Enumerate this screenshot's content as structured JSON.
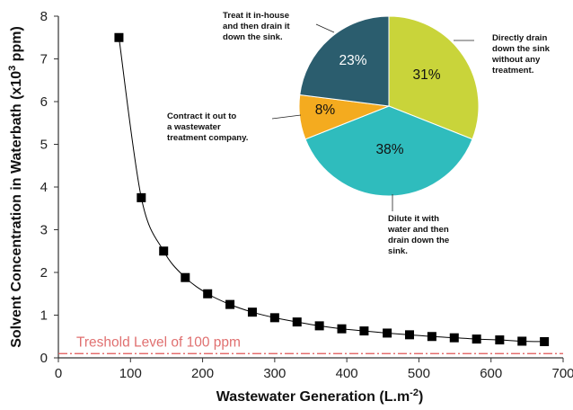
{
  "chart_data": [
    {
      "type": "scatter",
      "title": "",
      "xlabel": "Wastewater Generation (L.m",
      "xlabel_sup": "-2",
      "xlabel_end": ")",
      "ylabel": "Solvent Concentration in Waterbath (x10",
      "ylabel_sup": "3",
      "ylabel_end": " ppm)",
      "xlim": [
        0,
        700
      ],
      "ylim": [
        0,
        8
      ],
      "x_ticks": [
        "0",
        "100",
        "200",
        "300",
        "400",
        "500",
        "600",
        "700"
      ],
      "y_ticks": [
        "0",
        "1",
        "2",
        "3",
        "4",
        "5",
        "6",
        "7",
        "8"
      ],
      "grid": false,
      "marker_color": "#000000",
      "line_color": "#000000",
      "x": [
        84,
        115,
        146,
        176,
        207,
        238,
        269,
        300,
        331,
        362,
        393,
        424,
        456,
        487,
        518,
        549,
        580,
        612,
        643,
        674
      ],
      "y": [
        7.5,
        3.75,
        2.5,
        1.88,
        1.5,
        1.25,
        1.07,
        0.94,
        0.84,
        0.75,
        0.68,
        0.63,
        0.58,
        0.54,
        0.5,
        0.47,
        0.44,
        0.42,
        0.39,
        0.38
      ],
      "threshold": {
        "value": 0.1,
        "label": "Treshold Level of 100 ppm",
        "color": "#e05555"
      }
    },
    {
      "type": "pie",
      "slices": [
        {
          "value": 31,
          "pct_label": "31%",
          "color": "#c9d43a",
          "text_color": "#111111",
          "label": [
            "Directly drain",
            "down the sink",
            "without any",
            "treatment."
          ]
        },
        {
          "value": 38,
          "pct_label": "38%",
          "color": "#2fbcbd",
          "text_color": "#111111",
          "label": [
            "Dilute it with",
            "water and then",
            "drain down the",
            "sink."
          ]
        },
        {
          "value": 8,
          "pct_label": "8%",
          "color": "#f4ab1f",
          "text_color": "#111111",
          "label": [
            "Contract it out to",
            "a wastewater",
            "treatment company."
          ]
        },
        {
          "value": 23,
          "pct_label": "23%",
          "color": "#2b5d6e",
          "text_color": "#ffffff",
          "label": [
            "Treat it in-house",
            "and then drain it",
            "down the sink."
          ]
        }
      ]
    }
  ]
}
